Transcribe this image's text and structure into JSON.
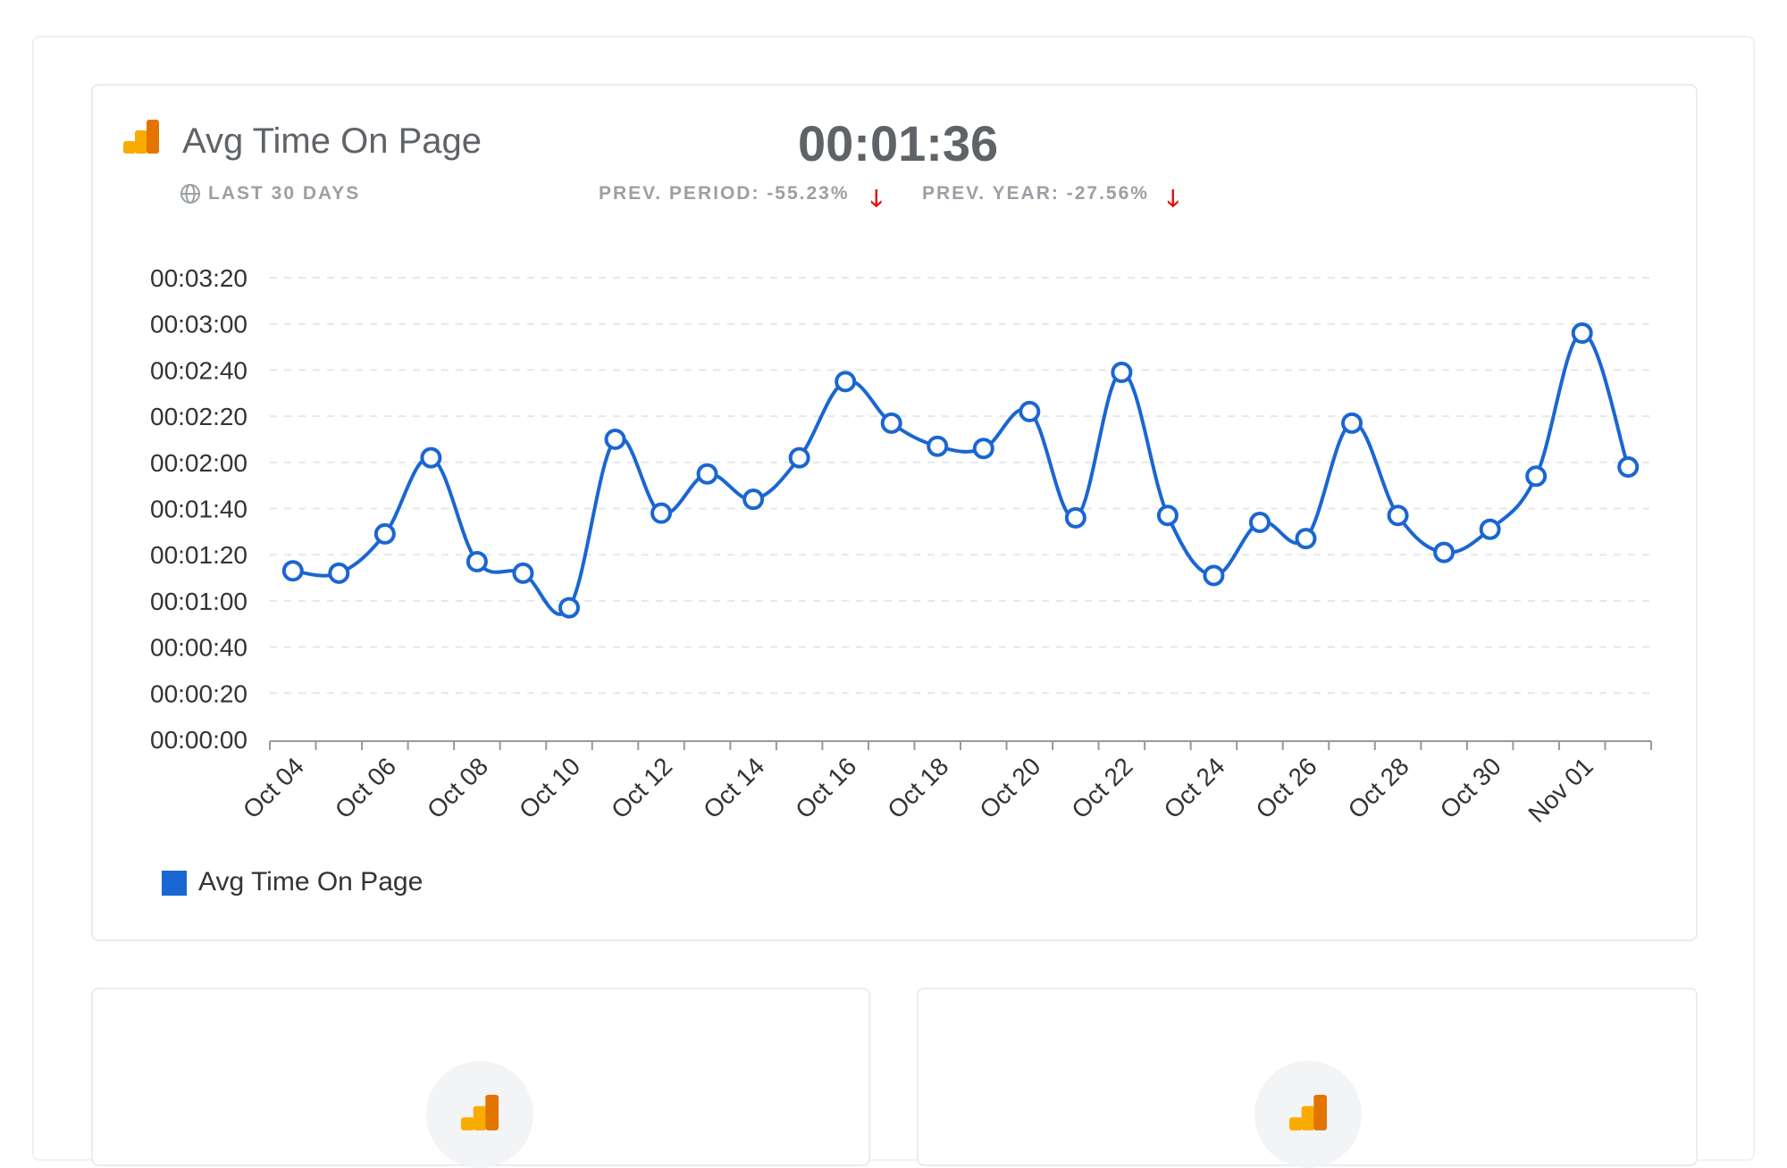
{
  "header": {
    "title": "Avg Time On Page",
    "value": "00:01:36",
    "date_range": "LAST 30 DAYS",
    "prev_period": "PREV. PERIOD: -55.23%",
    "prev_year": "PREV. YEAR: -27.56%"
  },
  "colors": {
    "line": "#1a66d2",
    "down": "#e0140f",
    "logo_a": "#f9ab00",
    "logo_b": "#e37400"
  },
  "chart_data": {
    "type": "line",
    "title": "Avg Time On Page",
    "xlabel": "",
    "ylabel": "",
    "ylim_seconds": [
      0,
      200
    ],
    "y_ticks": [
      "00:00:00",
      "00:00:20",
      "00:00:40",
      "00:01:00",
      "00:01:20",
      "00:01:40",
      "00:02:00",
      "00:02:20",
      "00:02:40",
      "00:03:00",
      "00:03:20"
    ],
    "x_tick_labels": [
      "Oct 04",
      "Oct 06",
      "Oct 08",
      "Oct 10",
      "Oct 12",
      "Oct 14",
      "Oct 16",
      "Oct 18",
      "Oct 20",
      "Oct 22",
      "Oct 24",
      "Oct 26",
      "Oct 28",
      "Oct 30",
      "Nov 01"
    ],
    "categories": [
      "Oct 04",
      "Oct 05",
      "Oct 06",
      "Oct 07",
      "Oct 08",
      "Oct 09",
      "Oct 10",
      "Oct 11",
      "Oct 12",
      "Oct 13",
      "Oct 14",
      "Oct 15",
      "Oct 16",
      "Oct 17",
      "Oct 18",
      "Oct 19",
      "Oct 20",
      "Oct 21",
      "Oct 22",
      "Oct 23",
      "Oct 24",
      "Oct 25",
      "Oct 26",
      "Oct 27",
      "Oct 28",
      "Oct 29",
      "Oct 30",
      "Oct 31",
      "Nov 01",
      "Nov 02"
    ],
    "series": [
      {
        "name": "Avg Time On Page",
        "values_seconds": [
          73,
          72,
          89,
          122,
          77,
          72,
          57,
          130,
          98,
          115,
          104,
          122,
          155,
          137,
          127,
          126,
          142,
          96,
          159,
          97,
          71,
          94,
          87,
          137,
          97,
          81,
          91,
          114,
          176,
          118
        ]
      }
    ],
    "grid": true,
    "legend": "bottom-left"
  }
}
